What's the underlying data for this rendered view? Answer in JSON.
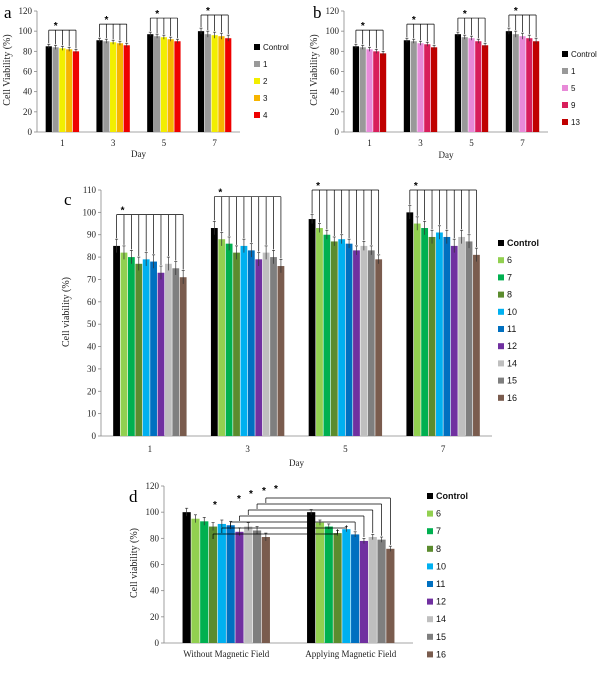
{
  "colors": {
    "Control": "#000000",
    "1": "#999999",
    "2": "#f2ee00",
    "3": "#f7b500",
    "4": "#ee0000",
    "5": "#e88ad8",
    "9": "#d81e5b",
    "13": "#c00000",
    "6": "#92d050",
    "7": "#00b050",
    "8": "#5b8c2e",
    "10": "#00b0f0",
    "11": "#0070c0",
    "12": "#7030a0",
    "14": "#bfbfbf",
    "15": "#7f7f7f",
    "16": "#7a5c4e"
  },
  "chart_data": [
    {
      "panel": "a",
      "type": "bar",
      "xlabel": "Day",
      "ylabel": "Cell Viability  (%)",
      "ylim": [
        0,
        120
      ],
      "yticks": [
        "0",
        "20",
        "40",
        "60",
        "80",
        "100",
        "120"
      ],
      "categories": [
        "1",
        "3",
        "5",
        "7"
      ],
      "series": [
        {
          "name": "Control",
          "values": [
            85,
            91,
            97,
            100
          ]
        },
        {
          "name": "1",
          "values": [
            84,
            90,
            95,
            97
          ]
        },
        {
          "name": "2",
          "values": [
            83,
            89,
            94,
            96
          ]
        },
        {
          "name": "3",
          "values": [
            82,
            88,
            92,
            95
          ]
        },
        {
          "name": "4",
          "values": [
            80,
            86,
            90,
            93
          ]
        }
      ],
      "errors": [
        2,
        2,
        2,
        3
      ],
      "significance": "*"
    },
    {
      "panel": "b",
      "type": "bar",
      "xlabel": "Day",
      "ylabel": "Cell Viability  (%)",
      "ylim": [
        0,
        120
      ],
      "yticks": [
        "0",
        "20",
        "40",
        "60",
        "80",
        "100",
        "120"
      ],
      "categories": [
        "1",
        "3",
        "5",
        "7"
      ],
      "series": [
        {
          "name": "Control",
          "values": [
            85,
            91,
            97,
            100
          ]
        },
        {
          "name": "1",
          "values": [
            84,
            90,
            94,
            97
          ]
        },
        {
          "name": "5",
          "values": [
            82,
            88,
            93,
            95
          ]
        },
        {
          "name": "9",
          "values": [
            80,
            87,
            90,
            93
          ]
        },
        {
          "name": "13",
          "values": [
            78,
            84,
            86,
            90
          ]
        }
      ],
      "errors": [
        2,
        2,
        2,
        3
      ],
      "significance": "*"
    },
    {
      "panel": "c",
      "type": "bar",
      "xlabel": "Day",
      "ylabel": "Cell viability  (%)",
      "ylim": [
        0,
        110
      ],
      "yticks": [
        "0",
        "10",
        "20",
        "30",
        "40",
        "50",
        "60",
        "70",
        "80",
        "90",
        "100",
        "110"
      ],
      "categories": [
        "1",
        "3",
        "5",
        "7"
      ],
      "series": [
        {
          "name": "Control",
          "values": [
            85,
            93,
            97,
            100
          ]
        },
        {
          "name": "6",
          "values": [
            82,
            88,
            93,
            95
          ]
        },
        {
          "name": "7",
          "values": [
            80,
            86,
            90,
            93
          ]
        },
        {
          "name": "8",
          "values": [
            77,
            82,
            87,
            89
          ]
        },
        {
          "name": "10",
          "values": [
            79,
            85,
            88,
            91
          ]
        },
        {
          "name": "11",
          "values": [
            78,
            83,
            86,
            89
          ]
        },
        {
          "name": "12",
          "values": [
            73,
            79,
            83,
            85
          ]
        },
        {
          "name": "14",
          "values": [
            77,
            82,
            85,
            89
          ]
        },
        {
          "name": "15",
          "values": [
            75,
            80,
            83,
            87
          ]
        },
        {
          "name": "16",
          "values": [
            71,
            76,
            79,
            81
          ]
        }
      ],
      "errors": [
        3,
        3,
        2,
        3
      ],
      "significance": "*"
    },
    {
      "panel": "d",
      "type": "bar",
      "xlabel": "",
      "ylabel": "Cell viability  (%)",
      "ylim": [
        0,
        120
      ],
      "yticks": [
        "0",
        "20",
        "40",
        "60",
        "80",
        "100",
        "120"
      ],
      "categories": [
        "Without Magnetic Field",
        "Applying Magnetic Field"
      ],
      "series": [
        {
          "name": "Control",
          "values": [
            100,
            100
          ]
        },
        {
          "name": "6",
          "values": [
            95,
            92
          ]
        },
        {
          "name": "7",
          "values": [
            93,
            89
          ]
        },
        {
          "name": "8",
          "values": [
            89,
            84
          ]
        },
        {
          "name": "10",
          "values": [
            91,
            87
          ]
        },
        {
          "name": "11",
          "values": [
            90,
            83
          ]
        },
        {
          "name": "12",
          "values": [
            85,
            78
          ]
        },
        {
          "name": "14",
          "values": [
            89,
            81
          ]
        },
        {
          "name": "15",
          "values": [
            86,
            79
          ]
        },
        {
          "name": "16",
          "values": [
            81,
            72
          ]
        }
      ],
      "errors": [
        3,
        2
      ],
      "significance": "*"
    }
  ]
}
